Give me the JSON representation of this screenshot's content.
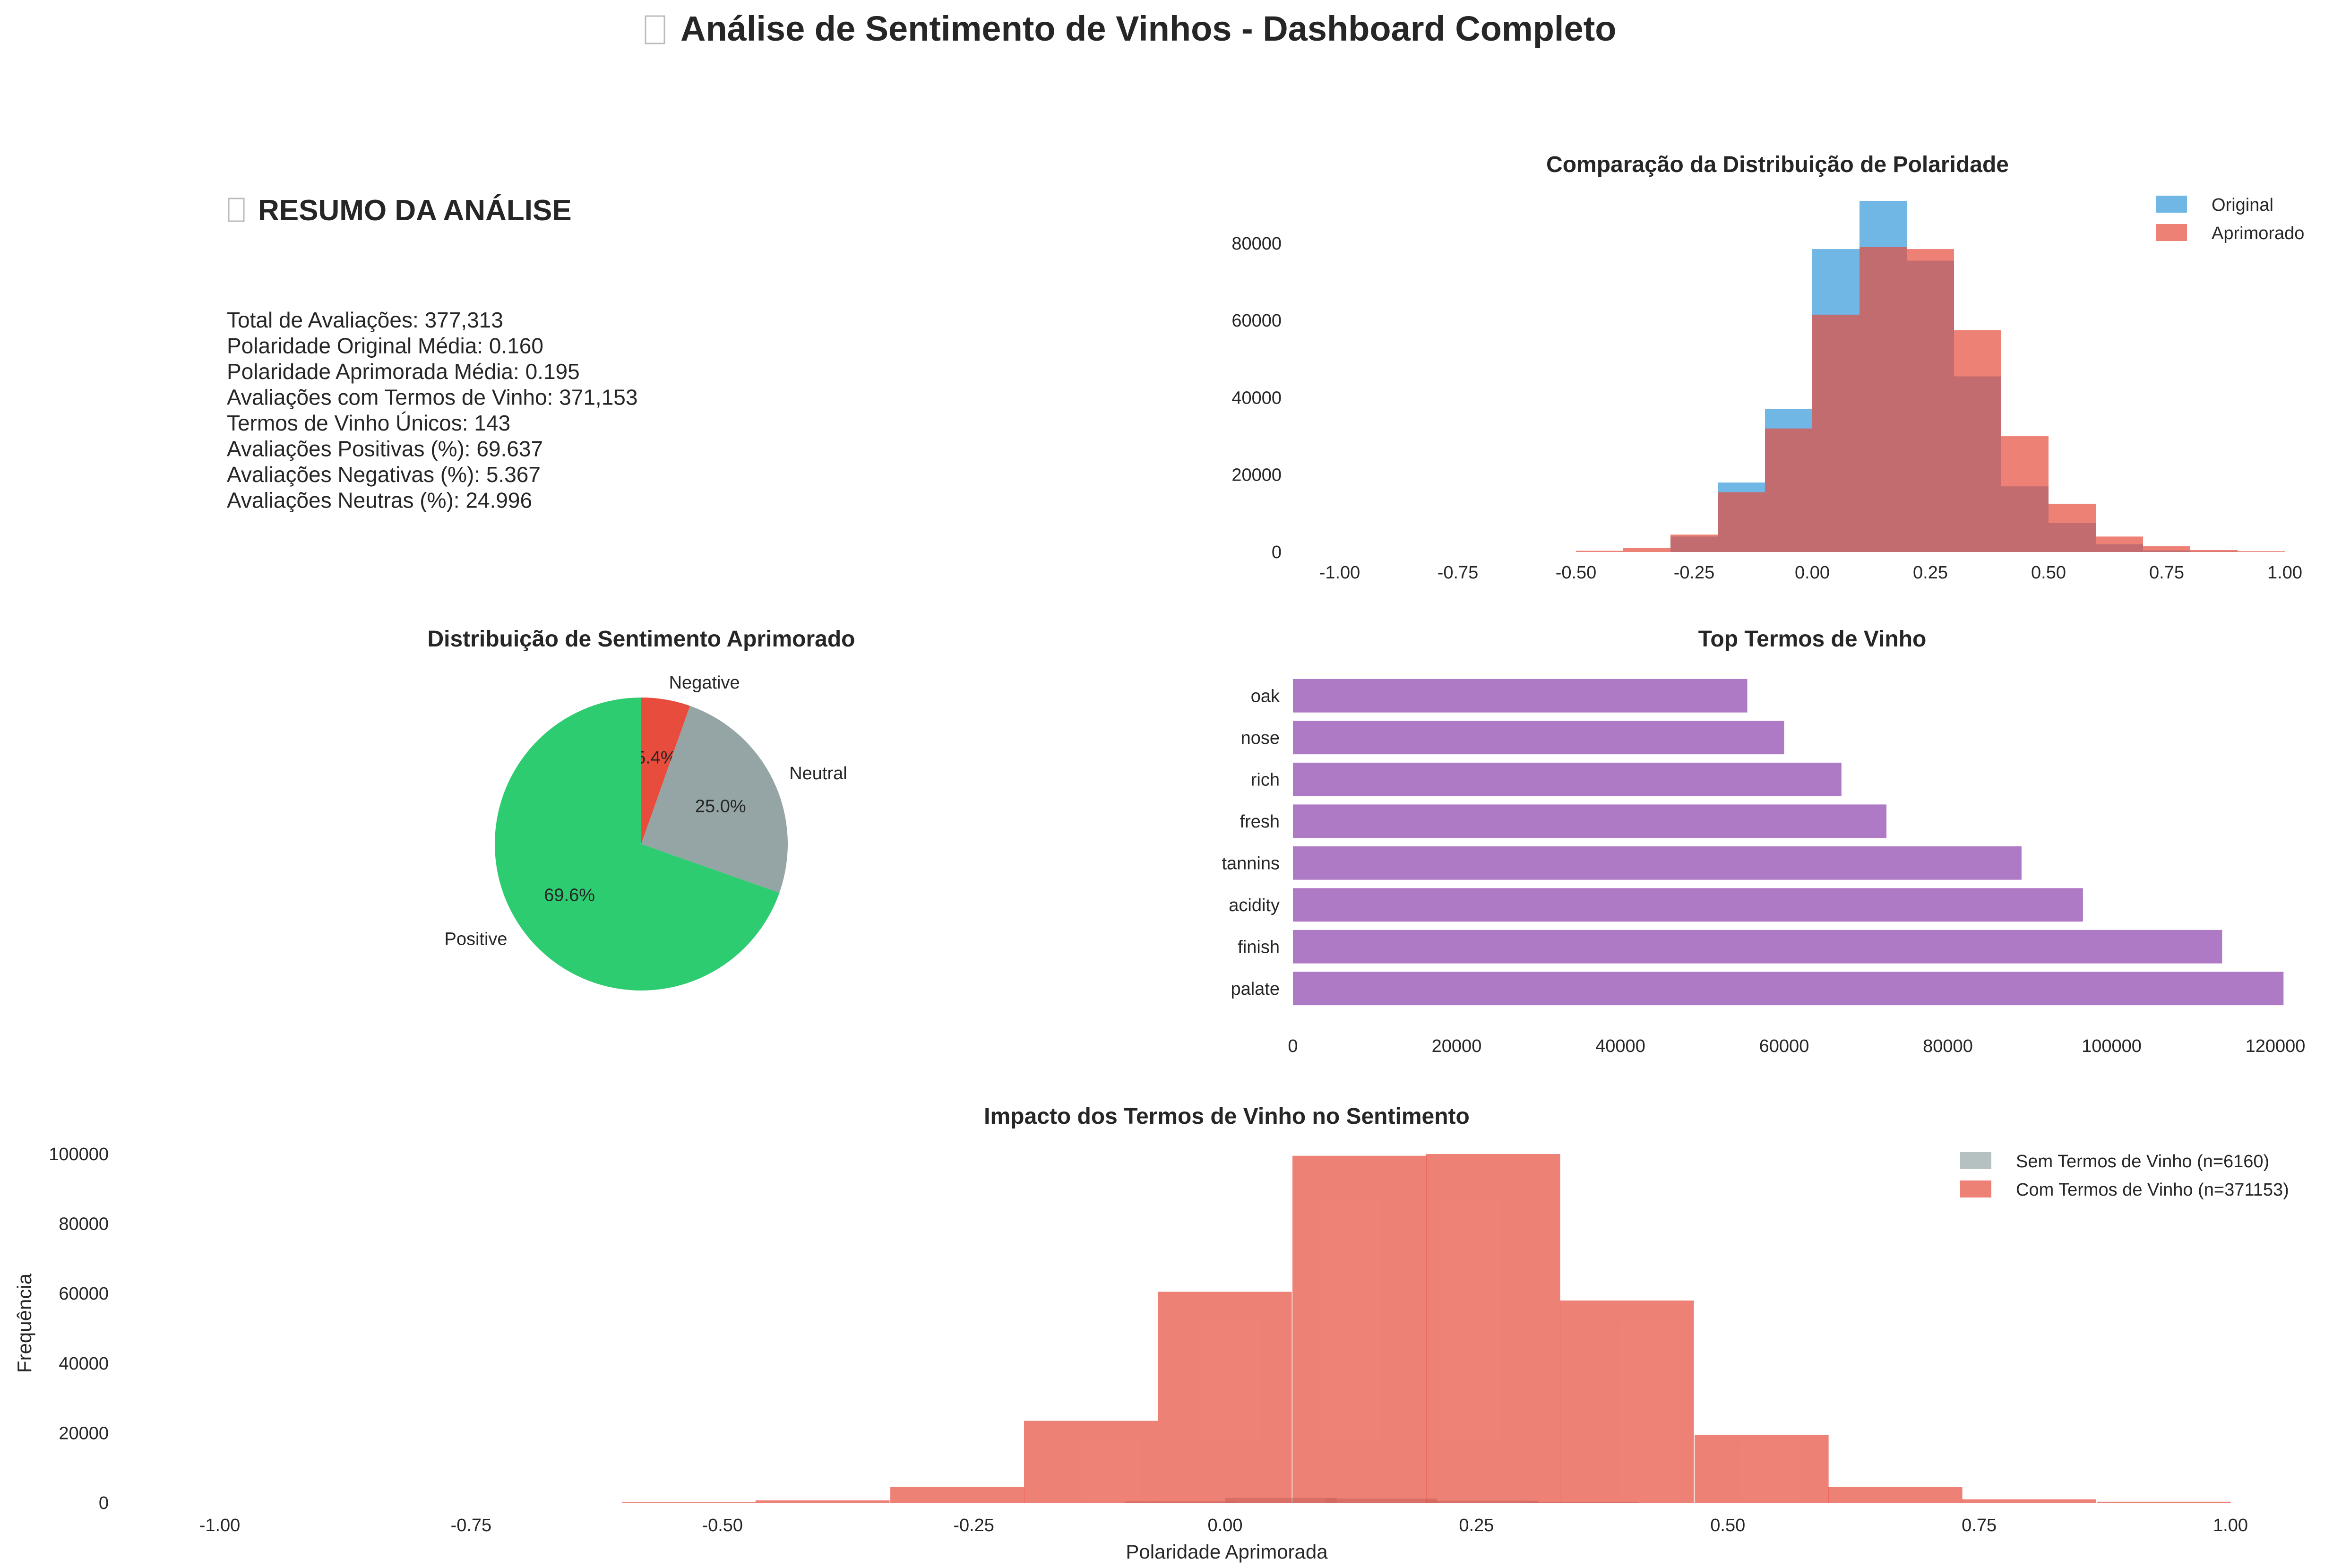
{
  "page": {
    "title_icon": "placeholder-glyph-icon",
    "title": "Análise de Sentimento de Vinhos - Dashboard Completo"
  },
  "summary": {
    "icon": "placeholder-glyph-icon",
    "heading": "RESUMO DA ANÁLISE",
    "lines": [
      "Total de Avaliações: 377,313",
      "Polaridade Original Média: 0.160",
      "Polaridade Aprimorada Média: 0.195",
      "Avaliações com Termos de Vinho: 371,153",
      "Termos de Vinho Únicos: 143",
      "Avaliações Positivas (%): 69.637",
      "Avaliações Negativas (%): 5.367",
      "Avaliações Neutras (%): 24.996"
    ]
  },
  "chart_data": [
    {
      "id": "polarity",
      "type": "bar",
      "title": "Comparação da Distribuição de Polaridade",
      "xlabel": "",
      "ylabel": "",
      "xlim": [
        -1.0,
        1.0
      ],
      "ylim": [
        0,
        91000
      ],
      "xticks": [
        "-1.00",
        "-0.75",
        "-0.50",
        "-0.25",
        "0.00",
        "0.25",
        "0.50",
        "0.75",
        "1.00"
      ],
      "yticks": [
        0,
        20000,
        40000,
        60000,
        80000
      ],
      "legend": "top-right",
      "grid": false,
      "bin_width": 0.1,
      "series": [
        {
          "name": "Original",
          "color": "#3498db",
          "bins_start": [
            -0.3,
            -0.2,
            -0.1,
            0.0,
            0.1,
            0.2,
            0.3,
            0.4,
            0.5,
            0.6,
            0.7,
            0.8
          ],
          "values": [
            4000,
            18000,
            37000,
            78500,
            91000,
            75500,
            45500,
            17000,
            7500,
            2000,
            400,
            100
          ]
        },
        {
          "name": "Aprimorado",
          "color": "#e74c3c",
          "bins_start": [
            -0.5,
            -0.4,
            -0.3,
            -0.2,
            -0.1,
            0.0,
            0.1,
            0.2,
            0.3,
            0.4,
            0.5,
            0.6,
            0.7,
            0.8,
            0.9
          ],
          "values": [
            300,
            1000,
            4500,
            15500,
            32000,
            61500,
            79000,
            78500,
            57500,
            30000,
            12500,
            4000,
            1500,
            500,
            200
          ]
        }
      ]
    },
    {
      "id": "pie",
      "type": "pie",
      "title": "Distribuição de Sentimento Aprimorado",
      "slices": [
        {
          "label": "Negative",
          "value": 5.4,
          "pct": "5.4%",
          "color": "#e74c3c"
        },
        {
          "label": "Neutral",
          "value": 25.0,
          "pct": "25.0%",
          "color": "#95a5a6"
        },
        {
          "label": "Positive",
          "value": 69.6,
          "pct": "69.6%",
          "color": "#2ecc71"
        }
      ]
    },
    {
      "id": "terms",
      "type": "bar",
      "orientation": "horizontal",
      "title": "Top Termos de Vinho",
      "xlabel": "",
      "ylabel": "",
      "xlim": [
        0,
        120000
      ],
      "xticks": [
        0,
        20000,
        40000,
        60000,
        80000,
        100000,
        120000
      ],
      "color": "#9b59b6",
      "categories": [
        "oak",
        "nose",
        "rich",
        "fresh",
        "tannins",
        "acidity",
        "finish",
        "palate"
      ],
      "values": [
        55500,
        60000,
        67000,
        72500,
        89000,
        96500,
        113500,
        121000
      ]
    },
    {
      "id": "impact",
      "type": "bar",
      "title": "Impacto dos Termos de Vinho no Sentimento",
      "xlabel": "Polaridade Aprimorada",
      "ylabel": "Frequência",
      "xlim": [
        -1.0,
        1.0
      ],
      "ylim": [
        0,
        100000
      ],
      "xticks": [
        "-1.00",
        "-0.75",
        "-0.50",
        "-0.25",
        "0.00",
        "0.25",
        "0.50",
        "0.75",
        "1.00"
      ],
      "yticks": [
        0,
        20000,
        40000,
        60000,
        80000,
        100000
      ],
      "legend": "top-right",
      "grid": false,
      "series": [
        {
          "name": "Sem Termos de Vinho (n=6160)",
          "color": "#95a5a6",
          "bins_start": [
            -0.1,
            0.0,
            0.1,
            0.2,
            0.3
          ],
          "bin_width": 0.111,
          "values": [
            400,
            1400,
            1200,
            600,
            200
          ]
        },
        {
          "name": "Com Termos de Vinho (n=371153)",
          "color": "#e74c3c",
          "bins_start": [
            -0.6,
            -0.467,
            -0.333,
            -0.2,
            -0.067,
            0.067,
            0.2,
            0.333,
            0.467,
            0.6,
            0.733,
            0.867
          ],
          "bin_width": 0.1333,
          "values": [
            200,
            700,
            4500,
            23500,
            60500,
            99500,
            100000,
            58000,
            19500,
            4500,
            1000,
            300
          ]
        }
      ]
    }
  ]
}
